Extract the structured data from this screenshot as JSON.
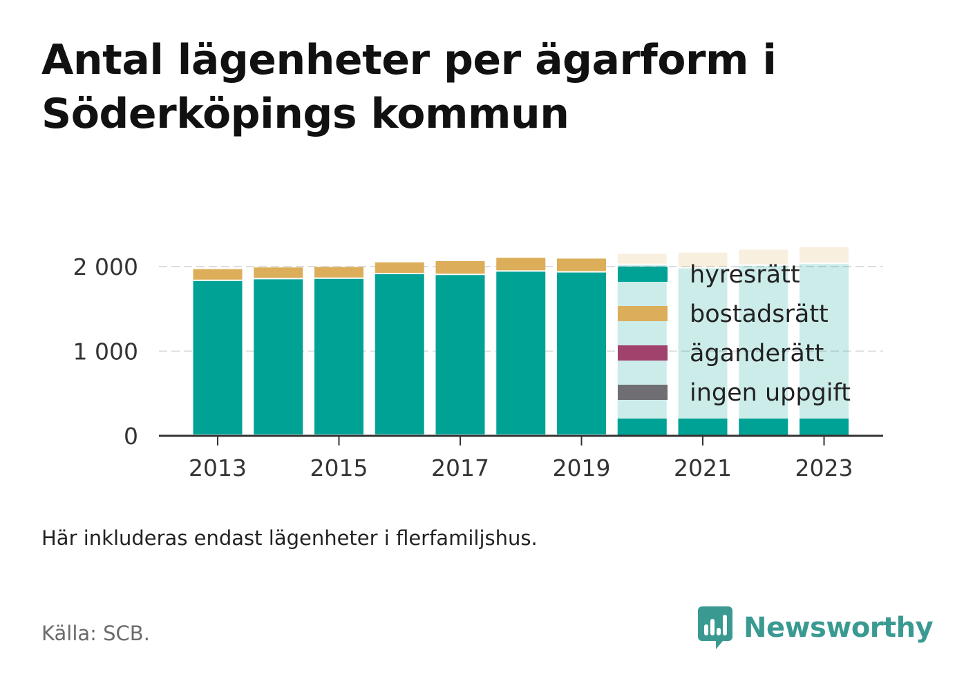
{
  "title": "Antal lägenheter per ägarform i Söderköpings kommun",
  "note": "Här inkluderas endast lägenheter i flerfamiljshus.",
  "source": "Källa: SCB.",
  "brand": {
    "name": "Newsworthy",
    "icon": "newsworthy-logo-icon",
    "color": "#3a9a92"
  },
  "colors": {
    "hyresratt": "#00a296",
    "bostadsratt": "#dcae5a",
    "aganderatt": "#a0426b",
    "ingen_uppgift": "#6e6e73",
    "grid": "#dddddd",
    "axis": "#333333"
  },
  "chart_data": {
    "type": "bar",
    "stacked": true,
    "x": [
      "2013",
      "2014",
      "2015",
      "2016",
      "2017",
      "2018",
      "2019",
      "2020",
      "2021",
      "2022",
      "2023"
    ],
    "x_tick_labels": [
      "2013",
      "2015",
      "2017",
      "2019",
      "2021",
      "2023"
    ],
    "series": [
      {
        "name": "hyresrätt",
        "key": "hyresratt",
        "values": [
          1830,
          1850,
          1855,
          1910,
          1900,
          1940,
          1930,
          2020,
          1980,
          2010,
          2030
        ]
      },
      {
        "name": "bostadsrätt",
        "key": "bostadsratt",
        "values": [
          140,
          140,
          140,
          140,
          165,
          165,
          165,
          130,
          185,
          190,
          200
        ]
      },
      {
        "name": "äganderätt",
        "key": "aganderatt",
        "values": [
          0,
          0,
          0,
          0,
          8,
          8,
          0,
          8,
          8,
          8,
          8
        ]
      },
      {
        "name": "ingen uppgift",
        "key": "ingen_uppgift",
        "values": [
          0,
          0,
          0,
          0,
          0,
          0,
          0,
          0,
          0,
          0,
          0
        ]
      }
    ],
    "ylim": [
      0,
      2000
    ],
    "y_ticks": [
      0,
      1000,
      2000
    ],
    "y_tick_labels": [
      "0",
      "1 000",
      "2 000"
    ],
    "grid": true,
    "legend_position": "right, overlapping the bars",
    "xlabel": "",
    "ylabel": ""
  }
}
